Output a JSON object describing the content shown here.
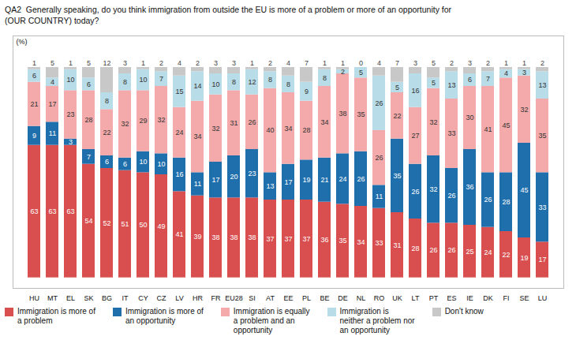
{
  "chart_data": {
    "type": "bar",
    "title": "QA2  Generally speaking, do you think immigration from outside the EU is more of a problem or more of an opportunity for\n(OUR COUNTRY) today?",
    "ylabel": "(%)",
    "categories": [
      "HU",
      "MT",
      "EL",
      "SK",
      "BG",
      "IT",
      "CY",
      "CZ",
      "LV",
      "HR",
      "FR",
      "EU28",
      "SI",
      "AT",
      "EE",
      "PL",
      "BE",
      "DE",
      "NL",
      "RO",
      "UK",
      "LT",
      "PT",
      "ES",
      "IE",
      "DK",
      "FI",
      "SE",
      "LU"
    ],
    "series": [
      {
        "name": "Immigration is more of\na problem",
        "color": "#d94f4f",
        "values": [
          63,
          63,
          63,
          54,
          52,
          51,
          50,
          49,
          41,
          39,
          38,
          38,
          38,
          37,
          37,
          37,
          36,
          35,
          34,
          33,
          31,
          28,
          26,
          26,
          25,
          24,
          22,
          19,
          17
        ]
      },
      {
        "name": "Immigration is more of\nan opportunity",
        "color": "#1f6fad",
        "values": [
          9,
          11,
          3,
          7,
          6,
          6,
          10,
          10,
          16,
          11,
          17,
          20,
          23,
          13,
          17,
          19,
          21,
          24,
          26,
          11,
          35,
          26,
          32,
          26,
          36,
          26,
          28,
          45,
          33
        ]
      },
      {
        "name": "Immigration is equally\na problem and an\nopportunity",
        "color": "#f4aaaa",
        "values": [
          21,
          17,
          23,
          28,
          22,
          32,
          29,
          32,
          24,
          34,
          32,
          31,
          26,
          40,
          34,
          28,
          34,
          38,
          35,
          26,
          22,
          27,
          32,
          33,
          30,
          41,
          45,
          32,
          35
        ]
      },
      {
        "name": "Immigration is\nneither a problem nor\nan opportunity",
        "color": "#b8dce8",
        "values": [
          6,
          4,
          10,
          6,
          8,
          8,
          10,
          7,
          15,
          14,
          10,
          8,
          12,
          8,
          8,
          9,
          8,
          2,
          5,
          26,
          5,
          16,
          5,
          13,
          6,
          7,
          4,
          3,
          13
        ]
      },
      {
        "name": "Don't know",
        "color": "#c8c8c8",
        "values": [
          1,
          5,
          1,
          5,
          12,
          3,
          1,
          2,
          4,
          2,
          3,
          3,
          1,
          2,
          4,
          7,
          1,
          1,
          0,
          4,
          7,
          3,
          5,
          2,
          3,
          2,
          1,
          1,
          2
        ]
      }
    ],
    "stacked": true,
    "data_labels": true,
    "tick_labels": "x",
    "ylim": [
      -5,
      115
    ],
    "grid": false,
    "legend": "bottom"
  }
}
